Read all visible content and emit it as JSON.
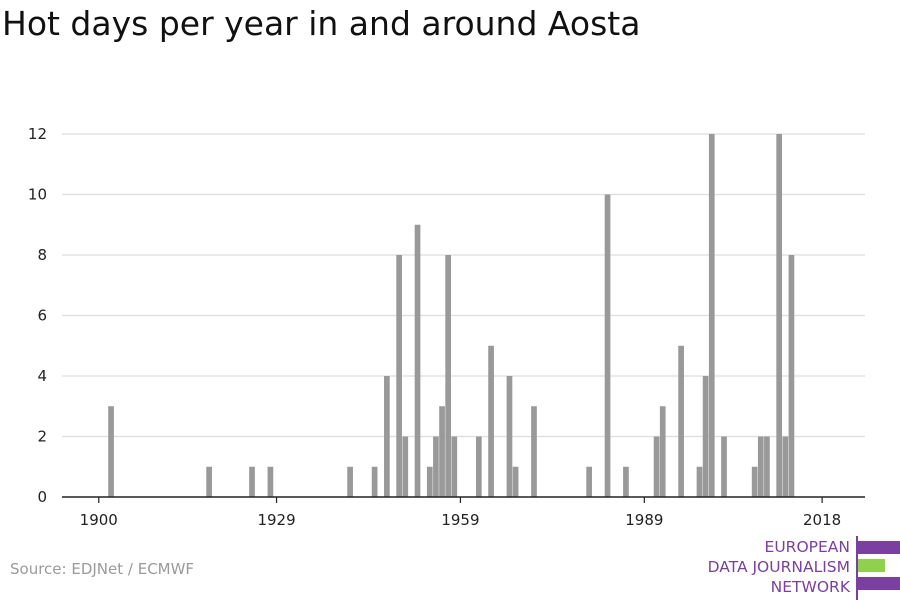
{
  "title": "Hot days per year in and around Aosta",
  "source": "Source: EDJNet / ECMWF",
  "logo": {
    "lines": [
      "EUROPEAN",
      "DATA JOURNALISM",
      "NETWORK"
    ],
    "colors": {
      "purple": "#7b3fa0",
      "green": "#8fd14f"
    }
  },
  "colors": {
    "bar": "#999999",
    "grid": "#dddddd",
    "axis": "#222222"
  },
  "chart_data": {
    "type": "bar",
    "title": "Hot days per year in and around Aosta",
    "xlabel": "",
    "ylabel": "",
    "xlim": [
      1894,
      2025
    ],
    "ylim": [
      0,
      12
    ],
    "x_ticks": [
      1900,
      1929,
      1959,
      1989,
      2018
    ],
    "y_ticks": [
      0,
      2,
      4,
      6,
      8,
      10,
      12
    ],
    "grid": true,
    "x": [
      1902,
      1918,
      1925,
      1928,
      1941,
      1945,
      1947,
      1949,
      1950,
      1952,
      1954,
      1955,
      1956,
      1957,
      1958,
      1959,
      1962,
      1964,
      1967,
      1968,
      1971,
      1980,
      1983,
      1986,
      1991,
      1992,
      1995,
      1998,
      1999,
      2000,
      2002,
      2007,
      2008,
      2009,
      2011,
      2012,
      2013
    ],
    "values": [
      3,
      1,
      1,
      1,
      1,
      1,
      4,
      8,
      2,
      9,
      1,
      2,
      3,
      8,
      2,
      0,
      2,
      5,
      4,
      1,
      3,
      1,
      10,
      1,
      2,
      3,
      5,
      1,
      4,
      12,
      2,
      1,
      2,
      2,
      12,
      2,
      8
    ]
  }
}
